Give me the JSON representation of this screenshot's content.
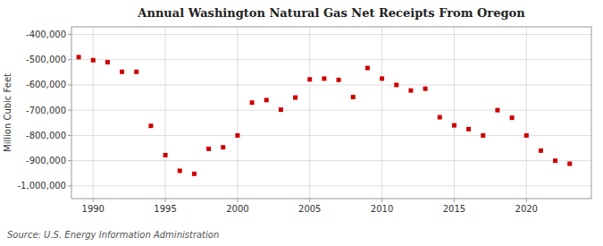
{
  "chart_data": {
    "type": "scatter",
    "title": "Annual Washington Natural Gas Net Receipts From Oregon",
    "ylabel": "Million Cubic Feet",
    "source": "Source: U.S. Energy Information Administration",
    "color": "#cc0000",
    "marker": "square",
    "grid": true,
    "xlim": [
      1988.5,
      2024.5
    ],
    "ylim": [
      -1050000,
      -370000
    ],
    "xticks": [
      1990,
      1995,
      2000,
      2005,
      2010,
      2015,
      2020
    ],
    "yticks": [
      {
        "value": -400000,
        "label": "-400,000"
      },
      {
        "value": -500000,
        "label": "-500,000"
      },
      {
        "value": -600000,
        "label": "-600,000"
      },
      {
        "value": -700000,
        "label": "-700,000"
      },
      {
        "value": -800000,
        "label": "-800,000"
      },
      {
        "value": -900000,
        "label": "-900,000"
      },
      {
        "value": -1000000,
        "label": "-1,000,000"
      }
    ],
    "x": [
      1989,
      1990,
      1991,
      1992,
      1993,
      1994,
      1995,
      1996,
      1997,
      1998,
      1999,
      2000,
      2001,
      2002,
      2003,
      2004,
      2005,
      2006,
      2007,
      2008,
      2009,
      2010,
      2011,
      2012,
      2013,
      2014,
      2015,
      2016,
      2017,
      2018,
      2019,
      2020,
      2021,
      2022,
      2023
    ],
    "values": [
      -490000,
      -502000,
      -510000,
      -548000,
      -548000,
      -762000,
      -878000,
      -940000,
      -952000,
      -853000,
      -847000,
      -800000,
      -670000,
      -660000,
      -698000,
      -650000,
      -578000,
      -575000,
      -580000,
      -648000,
      -533000,
      -575000,
      -600000,
      -622000,
      -615000,
      -728000,
      -760000,
      -775000,
      -800000,
      -700000,
      -730000,
      -800000,
      -860000,
      -900000,
      -912000
    ]
  }
}
